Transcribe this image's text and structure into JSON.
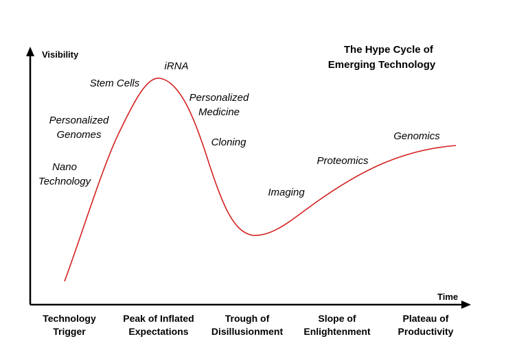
{
  "title": {
    "line1": "The Hype Cycle of",
    "line2": "Emerging Technology"
  },
  "axes": {
    "y_label": "Visibility",
    "x_label": "Time"
  },
  "curve_color": "#d42020",
  "technologies": [
    {
      "lines": [
        "Nano",
        "Technology"
      ]
    },
    {
      "lines": [
        "Personalized",
        "Genomes"
      ]
    },
    {
      "lines": [
        "Stem Cells"
      ]
    },
    {
      "lines": [
        "iRNA"
      ]
    },
    {
      "lines": [
        "Personalized",
        "Medicine"
      ]
    },
    {
      "lines": [
        "Cloning"
      ]
    },
    {
      "lines": [
        "Imaging"
      ]
    },
    {
      "lines": [
        "Proteomics"
      ]
    },
    {
      "lines": [
        "Genomics"
      ]
    }
  ],
  "phases": [
    {
      "lines": [
        "Technology",
        "Trigger"
      ]
    },
    {
      "lines": [
        "Peak of Inflated",
        "Expectations"
      ]
    },
    {
      "lines": [
        "Trough of",
        "Disillusionment"
      ]
    },
    {
      "lines": [
        "Slope of",
        "Enlightenment"
      ]
    },
    {
      "lines": [
        "Plateau of",
        "Productivity"
      ]
    }
  ]
}
